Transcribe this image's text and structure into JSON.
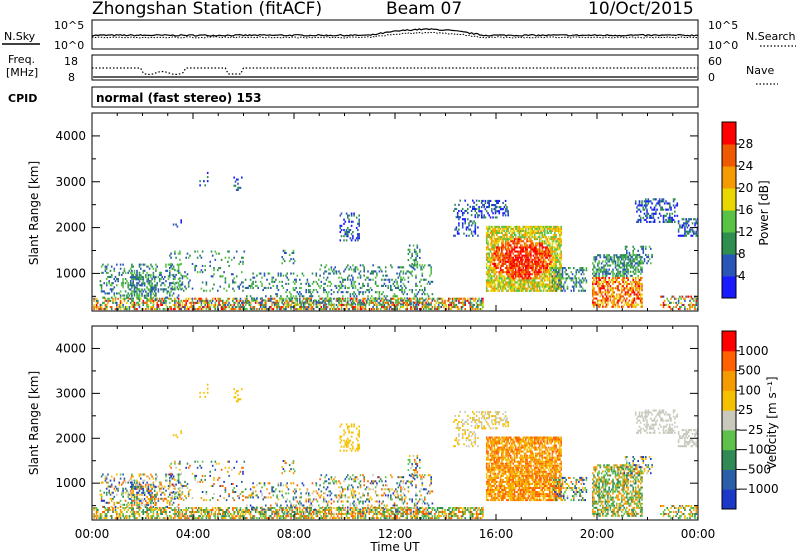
{
  "header": {
    "station": "Zhongshan Station (fitACF)",
    "beam": "Beam 07",
    "date": "10/Oct/2015"
  },
  "panels": {
    "noise": {
      "left_label": "N.Sky",
      "right_label": "N.Search",
      "left_ticks": [
        "10^5",
        "10^0"
      ],
      "right_ticks": [
        "10^5",
        "10^0"
      ]
    },
    "freq": {
      "left_label_1": "Freq.",
      "left_label_2": "[MHz]",
      "right_label": "Nave",
      "left_ticks": [
        "18",
        "8"
      ],
      "right_ticks": [
        "60",
        "0"
      ]
    },
    "cpid": {
      "label": "CPID",
      "text": "normal (fast stereo) 153"
    }
  },
  "colors": {
    "power_scale": [
      "#1a1aff",
      "#2a55b8",
      "#2f8f4f",
      "#57c244",
      "#e8d800",
      "#f59a00",
      "#ef5a00",
      "#ff0000"
    ],
    "velocity_scale": [
      "#1c38c8",
      "#2a5fa8",
      "#2f8a55",
      "#5fc04a",
      "#c8c8bc",
      "#f5c000",
      "#f59a00",
      "#ff6000",
      "#ff0000"
    ]
  },
  "chart_data": [
    {
      "type": "heatmap",
      "name": "power",
      "ylabel": "Slant Range [km]",
      "ylim": [
        180,
        4500
      ],
      "yticks": [
        "1000",
        "2000",
        "3000",
        "4000"
      ],
      "xlim": [
        0,
        24
      ],
      "colorbar_label": "Power [dB]",
      "colorbar_ticks": [
        "4",
        "8",
        "12",
        "16",
        "20",
        "24",
        "28"
      ],
      "colorbar_range": [
        0,
        32
      ]
    },
    {
      "type": "heatmap",
      "name": "velocity",
      "ylabel": "Slant Range [km]",
      "ylim": [
        180,
        4500
      ],
      "yticks": [
        "1000",
        "2000",
        "3000",
        "4000"
      ],
      "xlim": [
        0,
        24
      ],
      "xlabel": "Time UT",
      "xticks": [
        "00:00",
        "04:00",
        "08:00",
        "12:00",
        "16:00",
        "20:00",
        "00:00"
      ],
      "colorbar_label": "Velocity [m s⁻¹]",
      "colorbar_ticks": [
        "1000",
        "500",
        "100",
        "25",
        "−25",
        "−100",
        "−500",
        "−1000"
      ]
    }
  ]
}
